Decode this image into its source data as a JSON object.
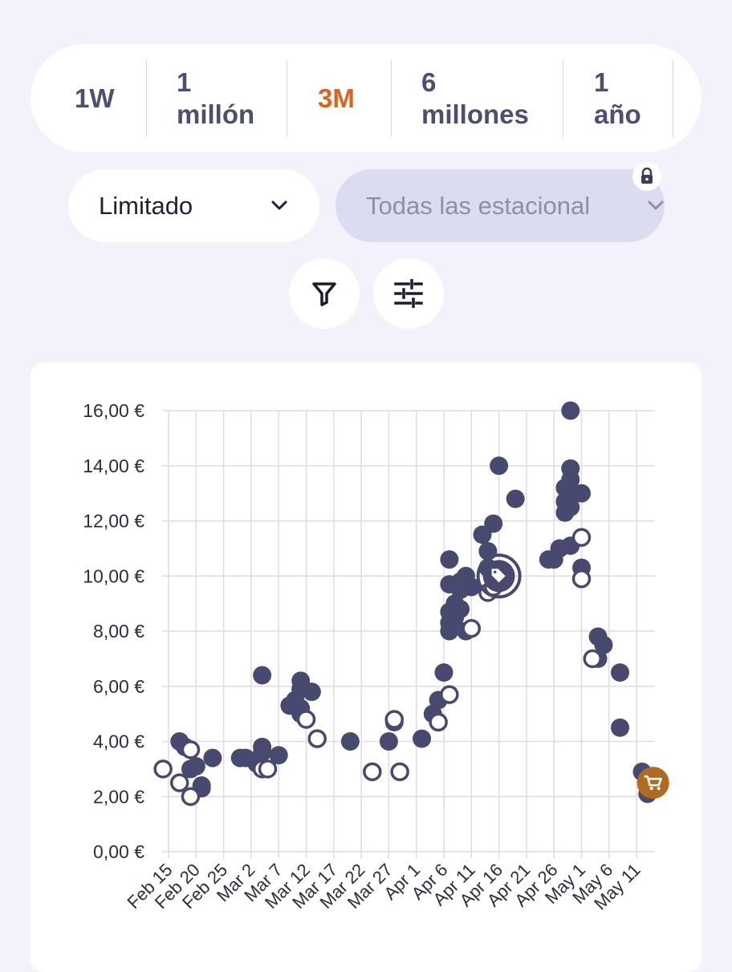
{
  "range_selector": {
    "options": [
      "1W",
      "1\nmillón",
      "3M",
      "6\nmillones",
      "1\naño"
    ],
    "active": "3M",
    "active_color": "#e0611a"
  },
  "filters": {
    "condition": {
      "value": "Limitado",
      "icon": "chevron-down-icon"
    },
    "seasonal": {
      "value": "Todas las estacional",
      "icon": "chevron-down-icon",
      "locked": true,
      "lock_icon": "lock-icon"
    }
  },
  "toolbar": {
    "filter_icon": "filter-icon",
    "settings_icon": "sliders-icon"
  },
  "chart_data": {
    "type": "scatter",
    "x_axis_type": "date",
    "x_ticks": [
      "Feb 15",
      "Feb 20",
      "Feb 25",
      "Mar 2",
      "Mar 7",
      "Mar 12",
      "Mar 17",
      "Mar 22",
      "Mar 27",
      "Apr 1",
      "Apr 6",
      "Apr 11",
      "Apr 16",
      "Apr 21",
      "Apr 26",
      "May 1",
      "May 6",
      "May 11"
    ],
    "y_ticks": [
      "0,00 €",
      "2,00 €",
      "4,00 €",
      "6,00 €",
      "8,00 €",
      "10,00 €",
      "12,00 €",
      "14,00 €",
      "16,00 €"
    ],
    "ylim": [
      0,
      16
    ],
    "grid": true,
    "point_color": "#474a6e",
    "highlight_color": "#b06a22",
    "series": [
      {
        "style": "filled",
        "points": [
          [
            "Feb 17",
            4.0
          ],
          [
            "Feb 18",
            3.8
          ],
          [
            "Feb 19",
            3.0
          ],
          [
            "Feb 20",
            3.1
          ],
          [
            "Feb 21",
            2.4
          ],
          [
            "Feb 21",
            2.3
          ],
          [
            "Feb 23",
            3.4
          ],
          [
            "Feb 28",
            3.4
          ],
          [
            "Mar 1",
            3.4
          ],
          [
            "Mar 3",
            3.2
          ],
          [
            "Mar 4",
            3.6
          ],
          [
            "Mar 4",
            6.4
          ],
          [
            "Mar 4",
            3.8
          ],
          [
            "Mar 7",
            3.5
          ],
          [
            "Mar 9",
            5.3
          ],
          [
            "Mar 10",
            5.5
          ],
          [
            "Mar 11",
            5.0
          ],
          [
            "Mar 11",
            6.2
          ],
          [
            "Mar 11",
            5.9
          ],
          [
            "Mar 11",
            5.2
          ],
          [
            "Mar 13",
            5.8
          ],
          [
            "Mar 20",
            4.0
          ],
          [
            "Mar 27",
            4.0
          ],
          [
            "Mar 28",
            4.7
          ],
          [
            "Apr 2",
            4.1
          ],
          [
            "Apr 4",
            5.0
          ],
          [
            "Apr 5",
            5.5
          ],
          [
            "Apr 6",
            6.5
          ],
          [
            "Apr 7",
            8.0
          ],
          [
            "Apr 7",
            8.3
          ],
          [
            "Apr 7",
            8.7
          ],
          [
            "Apr 7",
            9.7
          ],
          [
            "Apr 7",
            10.6
          ],
          [
            "Apr 8",
            8.5
          ],
          [
            "Apr 8",
            9.0
          ],
          [
            "Apr 9",
            8.8
          ],
          [
            "Apr 9",
            9.5
          ],
          [
            "Apr 9",
            9.8
          ],
          [
            "Apr 10",
            8.0
          ],
          [
            "Apr 10",
            10.0
          ],
          [
            "Apr 11",
            9.6
          ],
          [
            "Apr 13",
            11.5
          ],
          [
            "Apr 14",
            10.9
          ],
          [
            "Apr 14",
            10.3
          ],
          [
            "Apr 15",
            11.9
          ],
          [
            "Apr 16",
            14.0
          ],
          [
            "Apr 19",
            12.8
          ],
          [
            "Apr 25",
            10.6
          ],
          [
            "Apr 26",
            10.6
          ],
          [
            "Apr 27",
            11.0
          ],
          [
            "Apr 28",
            12.7
          ],
          [
            "Apr 28",
            13.2
          ],
          [
            "Apr 28",
            12.3
          ],
          [
            "Apr 29",
            16.0
          ],
          [
            "Apr 29",
            13.9
          ],
          [
            "Apr 29",
            13.5
          ],
          [
            "Apr 29",
            12.5
          ],
          [
            "Apr 29",
            11.1
          ],
          [
            "Apr 29",
            13.1
          ],
          [
            "May 1",
            13.0
          ],
          [
            "May 1",
            10.3
          ],
          [
            "May 4",
            7.8
          ],
          [
            "May 4",
            7.0
          ],
          [
            "May 5",
            7.5
          ],
          [
            "May 8",
            6.5
          ],
          [
            "May 8",
            4.5
          ],
          [
            "May 12",
            2.9
          ],
          [
            "May 13",
            2.1
          ]
        ]
      },
      {
        "style": "hollow",
        "points": [
          [
            "Feb 14",
            3.0
          ],
          [
            "Feb 17",
            2.5
          ],
          [
            "Feb 19",
            2.0
          ],
          [
            "Feb 19",
            3.7
          ],
          [
            "Mar 4",
            3.0
          ],
          [
            "Mar 5",
            3.0
          ],
          [
            "Mar 12",
            4.8
          ],
          [
            "Mar 14",
            4.1
          ],
          [
            "Mar 24",
            2.9
          ],
          [
            "Mar 28",
            4.8
          ],
          [
            "Mar 29",
            2.9
          ],
          [
            "Apr 5",
            4.7
          ],
          [
            "Apr 7",
            5.7
          ],
          [
            "Apr 11",
            8.1
          ],
          [
            "Apr 14",
            9.4
          ],
          [
            "Apr 15",
            9.6
          ],
          [
            "May 1",
            11.4
          ],
          [
            "May 1",
            9.9
          ],
          [
            "May 3",
            7.0
          ]
        ]
      }
    ],
    "highlight_point": {
      "x": "Apr 16",
      "y": 10.0,
      "icon": "price-tag-icon"
    },
    "cart_marker": {
      "x": "May 14",
      "y": 2.5,
      "icon": "cart-icon"
    }
  }
}
